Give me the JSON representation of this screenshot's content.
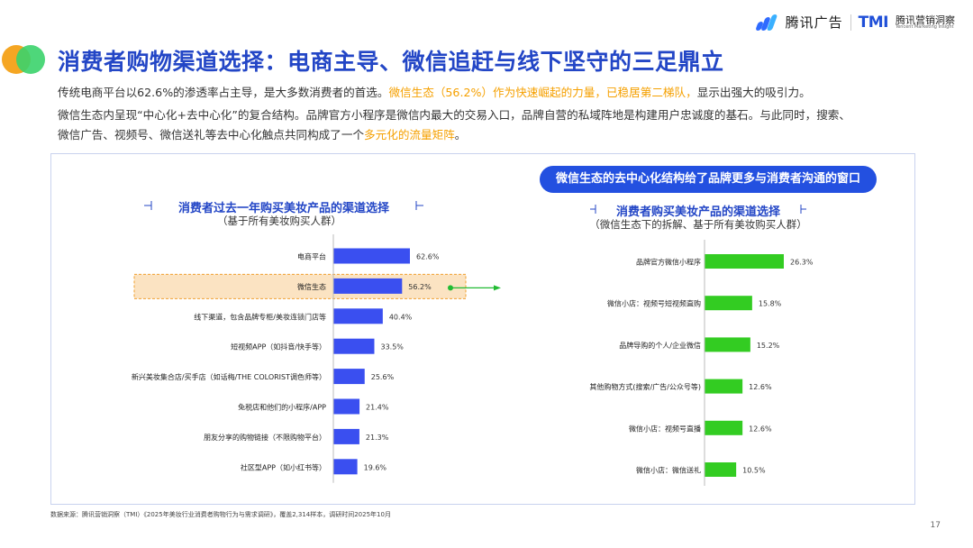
{
  "header": {
    "brand_text": "腾讯广告",
    "tmi_logo": "TMI",
    "tmi_cn": "腾讯营销洞察",
    "tmi_en": "Tencent Marketing Insight"
  },
  "title": "消费者购物渠道选择：电商主导、微信追赶与线下坚守的三足鼎立",
  "paragraphs": {
    "p1_a": "传统电商平台以62.6%的渗透率占主导，是大多数消费者的首选。",
    "p1_b": "微信生态（56.2%）作为快速崛起的力量，已稳居第二梯队，",
    "p1_c": "显示出强大的吸引力。",
    "p2": "微信生态内呈现“中心化+去中心化”的复合结构。品牌官方小程序是微信内最大的交易入口，品牌自营的私域阵地是构建用户忠诚度的基石。与此同时，搜索、",
    "p3_a": "微信广告、视频号、微信送礼等去中心化触点共同构成了一个",
    "p3_b": "多元化的流量矩阵",
    "p3_c": "。"
  },
  "callout": "微信生态的去中心化结构给了品牌更多与消费者沟通的窗口",
  "left_chart": {
    "title": "消费者过去一年购买美妆产品的渠道选择",
    "subtitle": "（基于所有美妆购买人群）"
  },
  "right_chart": {
    "title": "消费者购买美妆产品的渠道选择",
    "subtitle": "（微信生态下的拆解、基于所有美妆购买人群）"
  },
  "colors": {
    "blue_bar": "#3a4ff0",
    "green_bar": "#33cc22",
    "highlight_fill": "#fbe3c2",
    "highlight_border": "#f0a030",
    "arrow": "#22bb33"
  },
  "chart_data": [
    {
      "type": "bar",
      "orientation": "horizontal",
      "title": "消费者过去一年购买美妆产品的渠道选择",
      "subtitle": "（基于所有美妆购买人群）",
      "categories": [
        "电商平台",
        "微信生态",
        "线下渠道，包含品牌专柜/美妆连锁门店等",
        "短视频APP（如抖音/快手等）",
        "新兴美妆集合店/买手店（如话梅/THE COLORIST调色师等）",
        "免税店和他们的小程序/APP",
        "朋友分享的购物链接（不限购物平台）",
        "社区型APP（如小红书等）"
      ],
      "values": [
        62.6,
        56.2,
        40.4,
        33.5,
        25.6,
        21.4,
        21.3,
        19.6
      ],
      "labels": [
        "62.6%",
        "56.2%",
        "40.4%",
        "33.5%",
        "25.6%",
        "21.4%",
        "21.3%",
        "19.6%"
      ],
      "highlight": "微信生态",
      "grid": false
    },
    {
      "type": "bar",
      "orientation": "horizontal",
      "title": "消费者购买美妆产品的渠道选择",
      "subtitle": "（微信生态下的拆解、基于所有美妆购买人群）",
      "categories": [
        "品牌官方微信小程序",
        "微信小店：视频号短视频直购",
        "品牌导购的个人/企业微信",
        "其他购物方式(搜索/广告/公众号等)",
        "微信小店：视频号直播",
        "微信小店：微信送礼"
      ],
      "values": [
        26.3,
        15.8,
        15.2,
        12.6,
        12.6,
        10.5
      ],
      "labels": [
        "26.3%",
        "15.8%",
        "15.2%",
        "12.6%",
        "12.6%",
        "10.5%"
      ],
      "grid": false
    }
  ],
  "footer": {
    "source": "数据来源：腾讯营销洞察（TMI）《2025年美妆行业消费者购物行为与需求调研》，覆盖2,314样本，调研时间2025年10月",
    "page": "17"
  }
}
